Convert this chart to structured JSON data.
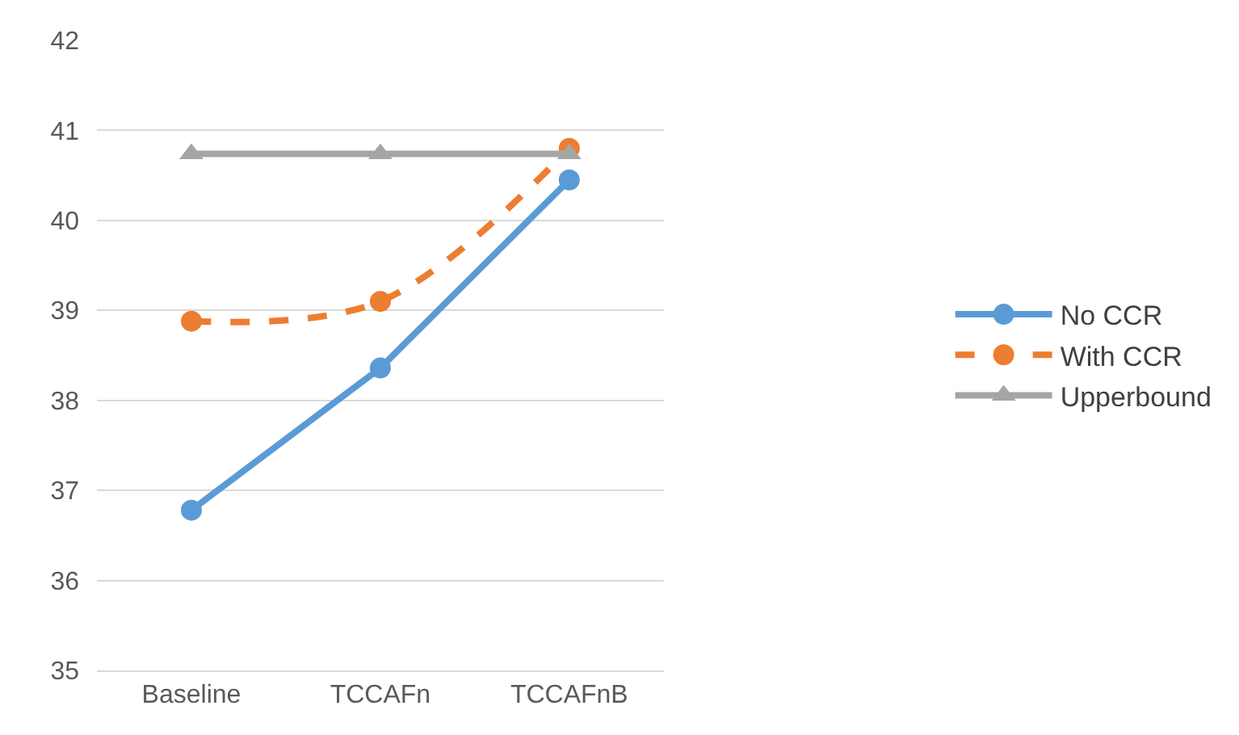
{
  "chart_data": {
    "type": "line",
    "categories": [
      "Baseline",
      "TCCAFn",
      "TCCAFnB"
    ],
    "series": [
      {
        "name": "No CCR",
        "color": "#5b9bd5",
        "values": [
          36.78,
          38.36,
          40.45
        ],
        "marker": "circle",
        "line_style": "solid"
      },
      {
        "name": "With CCR",
        "color": "#ed7d31",
        "values": [
          38.88,
          39.1,
          40.8
        ],
        "marker": "circle",
        "line_style": "dashed"
      },
      {
        "name": "Upperbound",
        "color": "#a5a5a5",
        "values": [
          40.74,
          40.74,
          40.74
        ],
        "marker": "triangle",
        "line_style": "solid"
      }
    ],
    "ylim": [
      35,
      42
    ],
    "yticks": [
      35,
      36,
      37,
      38,
      39,
      40,
      41,
      42
    ],
    "grid": "y",
    "legend": "right"
  }
}
